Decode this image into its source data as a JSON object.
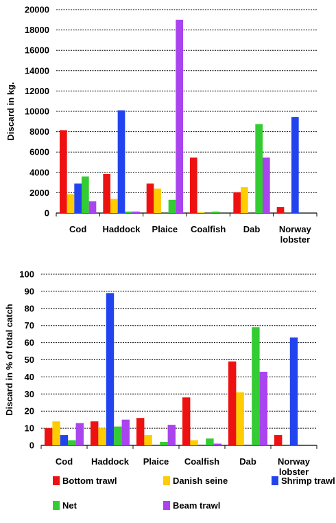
{
  "colors": {
    "Bottom trawl": "#ee1111",
    "Danish seine": "#ffcc00",
    "Shrimp trawl": "#2244ee",
    "Net": "#33cc33",
    "Beam trawl": "#aa44ee"
  },
  "legend": [
    "Bottom trawl",
    "Danish seine",
    "Shrimp trawl",
    "Net",
    "Beam trawl"
  ],
  "chart_data": [
    {
      "type": "bar",
      "ylabel": "Discard in kg.",
      "xlabel": "",
      "ylim": [
        0,
        20000
      ],
      "yticks": [
        0,
        2000,
        4000,
        6000,
        8000,
        10000,
        12000,
        14000,
        16000,
        18000,
        20000
      ],
      "grid": true,
      "legend_position": "bottom",
      "categories": [
        [
          "Cod"
        ],
        [
          "Haddock"
        ],
        [
          "Plaice"
        ],
        [
          "Coalfish"
        ],
        [
          "Dab"
        ],
        [
          "Norway",
          "lobster"
        ]
      ],
      "series": [
        {
          "name": "Bottom trawl",
          "values": [
            8150,
            3850,
            2900,
            5450,
            2050,
            600
          ]
        },
        {
          "name": "Danish seine",
          "values": [
            1850,
            1400,
            2400,
            80,
            2550,
            0
          ]
        },
        {
          "name": "Shrimp trawl",
          "values": [
            2900,
            10100,
            0,
            0,
            0,
            9450
          ]
        },
        {
          "name": "Net",
          "values": [
            3600,
            150,
            1300,
            150,
            8750,
            0
          ]
        },
        {
          "name": "Beam trawl",
          "values": [
            1150,
            150,
            19000,
            0,
            5450,
            0
          ]
        }
      ]
    },
    {
      "type": "bar",
      "ylabel": "Discard in % of total catch",
      "xlabel": "",
      "ylim": [
        0,
        100
      ],
      "yticks": [
        0,
        10,
        20,
        30,
        40,
        50,
        60,
        70,
        80,
        90,
        100
      ],
      "grid": true,
      "legend_position": "bottom",
      "categories": [
        [
          "Cod"
        ],
        [
          "Haddock"
        ],
        [
          "Plaice"
        ],
        [
          "Coalfish"
        ],
        [
          "Dab"
        ],
        [
          "Norway",
          "lobster"
        ]
      ],
      "series": [
        {
          "name": "Bottom trawl",
          "values": [
            10,
            14,
            16,
            28,
            49,
            6
          ]
        },
        {
          "name": "Danish seine",
          "values": [
            14,
            10,
            6,
            3,
            31,
            0
          ]
        },
        {
          "name": "Shrimp trawl",
          "values": [
            6,
            89,
            0,
            0,
            0,
            63
          ]
        },
        {
          "name": "Net",
          "values": [
            3,
            11,
            2,
            4,
            69,
            0
          ]
        },
        {
          "name": "Beam trawl",
          "values": [
            13,
            15,
            12,
            1,
            43,
            0
          ]
        }
      ]
    }
  ]
}
